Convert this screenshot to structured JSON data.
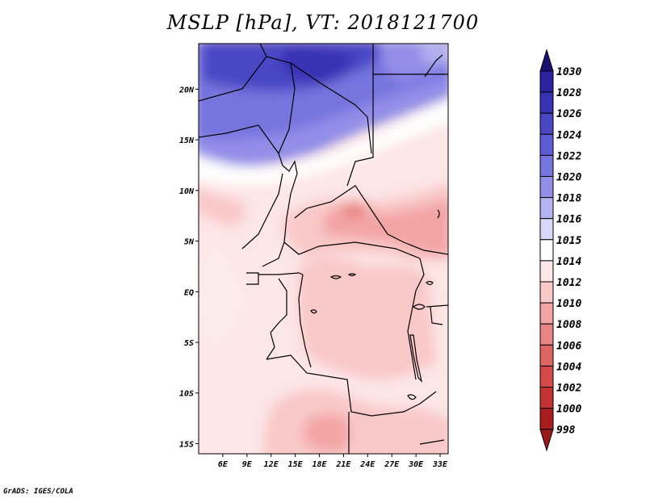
{
  "title": "MSLP [hPa], VT: 2018121700",
  "footer": "GrADS: IGES/COLA",
  "map": {
    "lon_range": [
      3,
      34
    ],
    "lat_range": [
      -16,
      24.5
    ],
    "x_ticks": [
      {
        "value": 6,
        "label": "6E"
      },
      {
        "value": 9,
        "label": "9E"
      },
      {
        "value": 12,
        "label": "12E"
      },
      {
        "value": 15,
        "label": "15E"
      },
      {
        "value": 18,
        "label": "18E"
      },
      {
        "value": 21,
        "label": "21E"
      },
      {
        "value": 24,
        "label": "24E"
      },
      {
        "value": 27,
        "label": "27E"
      },
      {
        "value": 30,
        "label": "30E"
      },
      {
        "value": 33,
        "label": "33E"
      }
    ],
    "y_ticks": [
      {
        "value": 20,
        "label": "20N"
      },
      {
        "value": 15,
        "label": "15N"
      },
      {
        "value": 10,
        "label": "10N"
      },
      {
        "value": 5,
        "label": "5N"
      },
      {
        "value": 0,
        "label": "EQ"
      },
      {
        "value": -5,
        "label": "5S"
      },
      {
        "value": -10,
        "label": "10S"
      },
      {
        "value": -15,
        "label": "15S"
      }
    ]
  },
  "colorbar": {
    "levels": [
      {
        "label": "1030",
        "color": "#1e1478"
      },
      {
        "label": "1028",
        "color": "#2a22a0"
      },
      {
        "label": "1026",
        "color": "#3832b4"
      },
      {
        "label": "1024",
        "color": "#4a46c4"
      },
      {
        "label": "1022",
        "color": "#5e5cd2"
      },
      {
        "label": "1020",
        "color": "#7674de"
      },
      {
        "label": "1018",
        "color": "#928ee8"
      },
      {
        "label": "1016",
        "color": "#b4b2f0"
      },
      {
        "label": "1015",
        "color": "#d8d8f8"
      },
      {
        "label": "1014",
        "color": "#ffffff"
      },
      {
        "label": "1012",
        "color": "#fde6e6"
      },
      {
        "label": "1010",
        "color": "#f9c8c8"
      },
      {
        "label": "1008",
        "color": "#f3a4a4"
      },
      {
        "label": "1006",
        "color": "#e98484"
      },
      {
        "label": "1004",
        "color": "#df6464"
      },
      {
        "label": "1002",
        "color": "#d44a4a"
      },
      {
        "label": "1000",
        "color": "#c23434"
      },
      {
        "label": "998",
        "color": "#a81e1e"
      }
    ],
    "top_arrow_color": "#1a1070",
    "bottom_arrow_color": "#9a1a1a"
  }
}
